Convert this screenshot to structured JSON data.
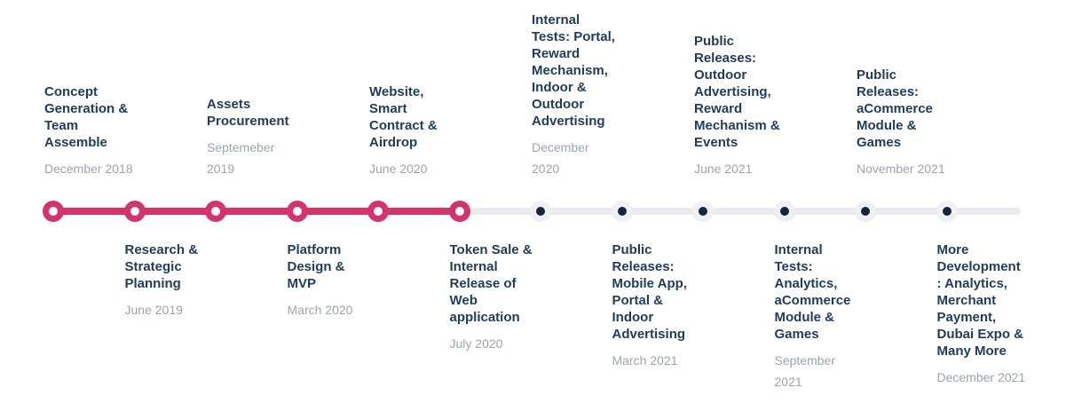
{
  "timeline": {
    "name": "Project Roadmap Timeline",
    "accent_color": "#D6336C",
    "track_color": "#E9EBEE",
    "upcoming_halo_color": "#EFF0F2",
    "upcoming_dot_color": "#12263F",
    "title_color": "#1D3C5F",
    "date_color": "#9AA5B1",
    "completed_count": 6,
    "milestones": [
      {
        "title": "Concept\nGeneration &\nTeam\nAssemble",
        "date": "December 2018",
        "position": "top",
        "status": "completed"
      },
      {
        "title": "Research &\nStrategic\nPlanning",
        "date": "June 2019",
        "position": "bottom",
        "status": "completed"
      },
      {
        "title": "Assets\nProcurement",
        "date": "Septemeber\n2019",
        "position": "top",
        "status": "completed"
      },
      {
        "title": "Platform\nDesign &\nMVP",
        "date": "March 2020",
        "position": "bottom",
        "status": "completed"
      },
      {
        "title": "Website,\nSmart\nContract &\nAirdrop",
        "date": "June 2020",
        "position": "top",
        "status": "completed"
      },
      {
        "title": "Token Sale &\nInternal\nRelease of\nWeb\napplication",
        "date": "July 2020",
        "position": "bottom",
        "status": "completed"
      },
      {
        "title": "Internal\nTests: Portal,\nReward\nMechanism,\nIndoor &\nOutdoor\nAdvertising",
        "date": "December\n2020",
        "position": "top",
        "status": "upcoming"
      },
      {
        "title": "Public\nReleases:\nMobile App,\nPortal &\nIndoor\nAdvertising",
        "date": "March 2021",
        "position": "bottom",
        "status": "upcoming"
      },
      {
        "title": "Public\nReleases:\nOutdoor\nAdvertising,\nReward\nMechanism &\nEvents",
        "date": "June 2021",
        "position": "top",
        "status": "upcoming"
      },
      {
        "title": "Internal\nTests:\nAnalytics,\naCommerce\nModule &\nGames",
        "date": "September\n2021",
        "position": "bottom",
        "status": "upcoming"
      },
      {
        "title": "Public\nReleases:\naCommerce\nModule &\nGames",
        "date": "November 2021",
        "position": "top",
        "status": "upcoming"
      },
      {
        "title": "More\nDevelopment\n: Analytics,\nMerchant\nPayment,\nDubai Expo &\nMany More",
        "date": "December 2021",
        "position": "bottom",
        "status": "upcoming"
      }
    ]
  }
}
